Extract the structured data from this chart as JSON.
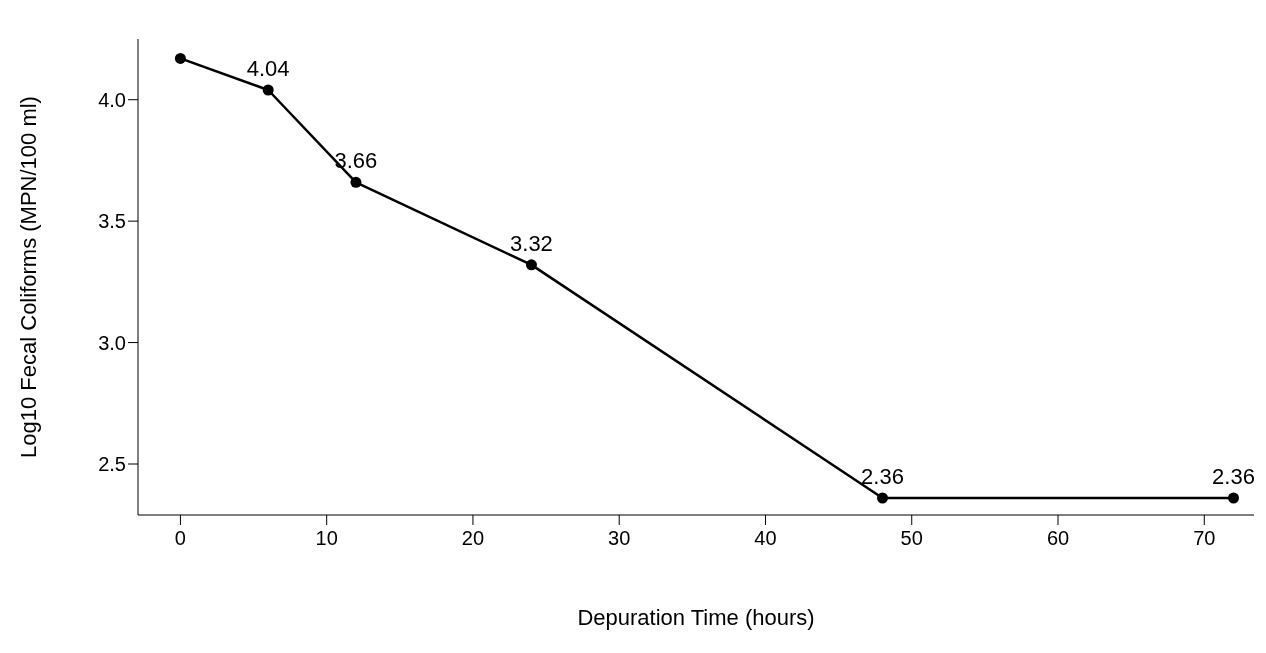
{
  "chart_data": {
    "type": "line",
    "xlabel": "Depuration Time (hours)",
    "ylabel": "Log10 Fecal Coliforms (MPN/100 ml)",
    "x": [
      0,
      6,
      12,
      24,
      48,
      72
    ],
    "series": [
      {
        "color": "#000000",
        "values": [
          4.17,
          4.04,
          3.66,
          3.32,
          2.36,
          2.36
        ],
        "value_labels": [
          null,
          "4.04",
          "3.66",
          "3.32",
          "2.36",
          "2.36"
        ]
      }
    ],
    "xlim": [
      -2.9,
      73.4
    ],
    "xticks": [
      0,
      10,
      20,
      30,
      40,
      50,
      60,
      70
    ],
    "ylim": [
      2.29,
      4.25
    ],
    "yticks": [
      {
        "value": 2.5,
        "label": "2.5"
      },
      {
        "value": 3,
        "label": "3.0"
      },
      {
        "value": 3.5,
        "label": "3.5"
      },
      {
        "value": 4,
        "label": "4.0"
      }
    ],
    "grid": false,
    "legend": false,
    "marker": "circle",
    "line_style": "solid"
  }
}
